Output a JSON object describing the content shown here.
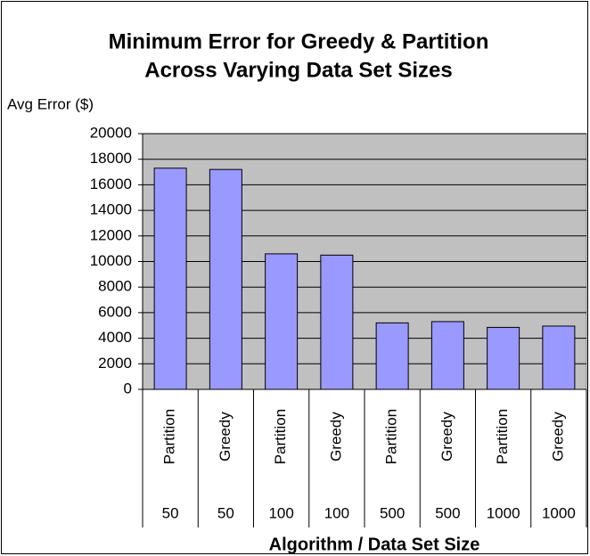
{
  "chart_data": {
    "type": "bar",
    "title": [
      "Minimum Error for Greedy & Partition",
      "Across Varying Data Set Sizes"
    ],
    "y_label": "Avg Error ($)",
    "x_label": "Algorithm / Data Set Size",
    "categories": [
      "Partition",
      "Greedy",
      "Partition",
      "Greedy",
      "Partition",
      "Greedy",
      "Partition",
      "Greedy"
    ],
    "category_groups": [
      "50",
      "50",
      "100",
      "100",
      "500",
      "500",
      "1000",
      "1000"
    ],
    "values": [
      17300,
      17200,
      10600,
      10500,
      5200,
      5300,
      4850,
      4950
    ],
    "color": "#9999ff",
    "ylim": [
      0,
      20000
    ],
    "yticks": [
      0,
      2000,
      4000,
      6000,
      8000,
      10000,
      12000,
      14000,
      16000,
      18000,
      20000
    ],
    "grid": true
  }
}
